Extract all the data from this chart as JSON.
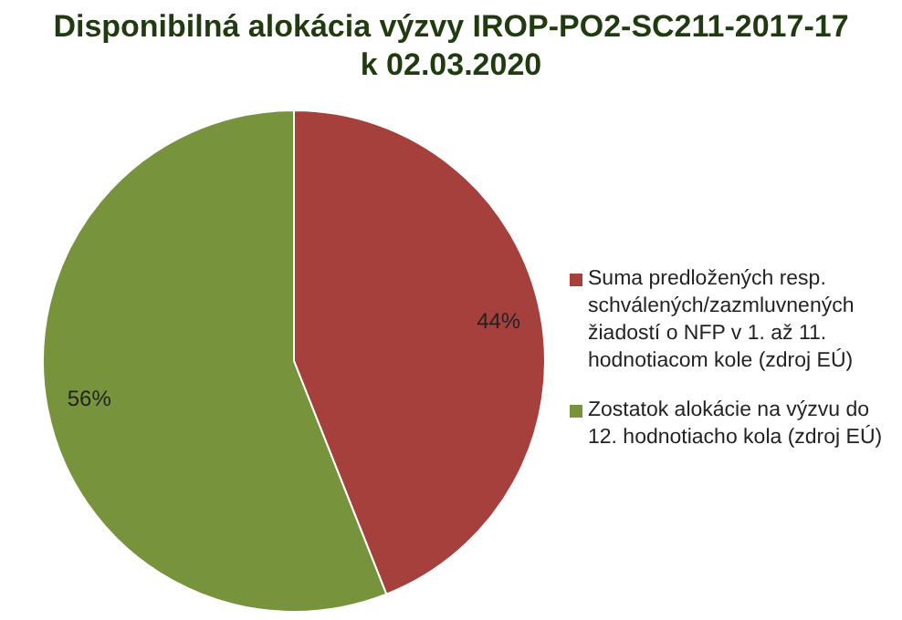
{
  "chart_data": {
    "type": "pie",
    "title": "Disponibilná alokácia výzvy IROP-PO2-SC211-2017-17\nk 02.03.2020",
    "categories": [
      "Suma predložených resp. schválených/zazmluvnených žiadostí o NFP  v 1. až 11. hodnotiacom kole (zdroj EÚ)",
      "Zostatok alokácie na výzvu do 12. hodnotiacho kola (zdroj EÚ)"
    ],
    "values": [
      44,
      56
    ],
    "colors": [
      "#a5403d",
      "#77933c"
    ],
    "value_labels": [
      "44%",
      "56%"
    ],
    "legend": "right"
  }
}
